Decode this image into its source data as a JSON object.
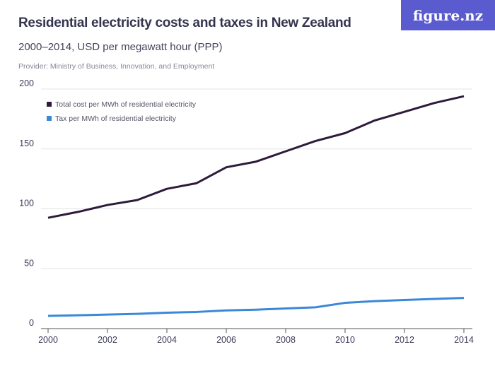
{
  "header": {
    "title": "Residential electricity costs and taxes in New Zealand",
    "subtitle": "2000–2014, USD per megawatt hour (PPP)",
    "provider": "Provider: Ministry of Business, Innovation, and Employment",
    "logo": "figure.nz"
  },
  "chart_data": {
    "type": "line",
    "title": "Residential electricity costs and taxes in New Zealand",
    "subtitle": "2000–2014, USD per megawatt hour (PPP)",
    "x": [
      2000,
      2001,
      2002,
      2003,
      2004,
      2005,
      2006,
      2007,
      2008,
      2009,
      2010,
      2011,
      2012,
      2013,
      2014
    ],
    "x_ticks": [
      "2000",
      "2002",
      "2004",
      "2006",
      "2008",
      "2010",
      "2012",
      "2014"
    ],
    "y_ticks": [
      "0",
      "50",
      "100",
      "150",
      "200"
    ],
    "ylim": [
      0,
      200
    ],
    "xlim": [
      2000,
      2014
    ],
    "grid": true,
    "legend_position": "top-left",
    "series": [
      {
        "name": "Total cost per MWh of residential electricity",
        "color": "#2e1b3b",
        "values": [
          92.5,
          97.4,
          103.2,
          107.3,
          116.7,
          121.4,
          134.7,
          139.4,
          148,
          156.6,
          163.2,
          173.8,
          181,
          188.3,
          194
        ]
      },
      {
        "name": "Tax per MWh of residential electricity",
        "color": "#3a88d8",
        "values": [
          10.6,
          11.1,
          11.7,
          12.3,
          13.3,
          13.9,
          15.2,
          15.8,
          16.8,
          17.8,
          21.5,
          22.9,
          23.9,
          24.8,
          25.6
        ]
      }
    ]
  }
}
